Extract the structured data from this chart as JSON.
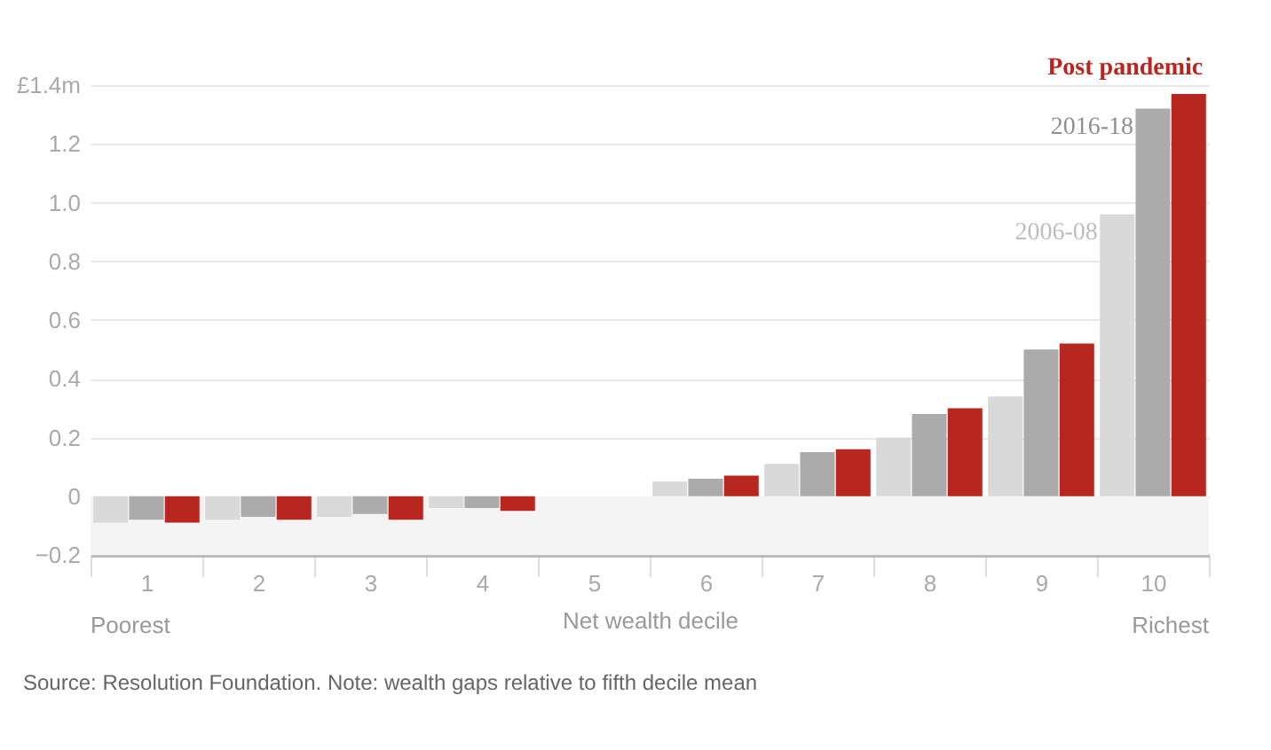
{
  "chart_data": {
    "type": "bar",
    "xlabel": "Net wealth decile",
    "categories": [
      "1",
      "2",
      "3",
      "4",
      "5",
      "6",
      "7",
      "8",
      "9",
      "10"
    ],
    "series": [
      {
        "name": "2006-08",
        "color": "#d9d9d9",
        "values": [
          -0.09,
          -0.08,
          -0.07,
          -0.04,
          0,
          0.05,
          0.11,
          0.2,
          0.34,
          0.96
        ]
      },
      {
        "name": "2016-18",
        "color": "#ababab",
        "values": [
          -0.08,
          -0.07,
          -0.06,
          -0.04,
          0,
          0.06,
          0.15,
          0.28,
          0.5,
          1.32
        ]
      },
      {
        "name": "Post pandemic",
        "color": "#b82620",
        "values": [
          -0.09,
          -0.08,
          -0.08,
          -0.05,
          0,
          0.07,
          0.16,
          0.3,
          0.52,
          1.37
        ]
      }
    ],
    "ylim": [
      -0.2,
      1.4
    ],
    "yticks": [
      -0.2,
      0,
      0.2,
      0.4,
      0.6,
      0.8,
      {
        "value": 1.0,
        "label": "1.0"
      },
      1.2,
      {
        "value": 1.4,
        "label": "£1.4m"
      }
    ],
    "grid": "y",
    "bands": [
      {
        "axis": "y",
        "from": -0.2,
        "to": 0,
        "color": "#f4f4f4"
      }
    ],
    "annotations": [
      "Poorest",
      "Richest",
      "Source: Resolution Foundation. Note: wealth gaps relative to fifth decile mean"
    ]
  }
}
